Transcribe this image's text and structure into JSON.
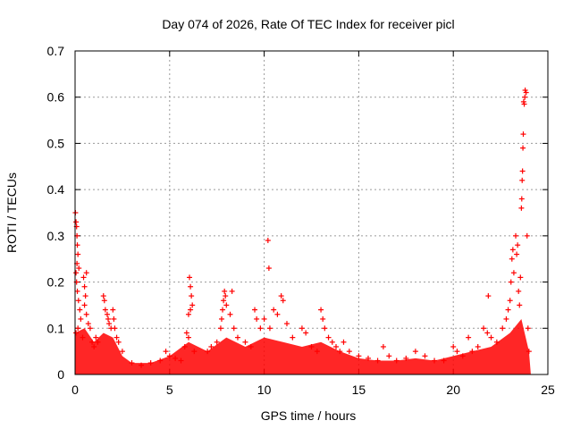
{
  "chart_data": {
    "type": "scatter",
    "title": "Day 074 of 2026, Rate Of TEC Index for receiver picl",
    "xlabel": "GPS time / hours",
    "ylabel": "ROTI / TECUs",
    "xlim": [
      0,
      25
    ],
    "ylim": [
      0,
      0.7
    ],
    "x_ticks": [
      0,
      5,
      10,
      15,
      20,
      25
    ],
    "x_tick_labels": [
      "0",
      "5",
      "10",
      "15",
      "20",
      "25"
    ],
    "y_ticks": [
      0,
      0.1,
      0.2,
      0.3,
      0.4,
      0.5,
      0.6,
      0.7
    ],
    "y_tick_labels": [
      "0",
      "0.1",
      "0.2",
      "0.3",
      "0.4",
      "0.5",
      "0.6",
      "0.7"
    ],
    "grid": true,
    "marker": "+",
    "series": [
      {
        "name": "ROTI",
        "color": "#ff0000",
        "points": [
          [
            0.02,
            0.35
          ],
          [
            0.05,
            0.33
          ],
          [
            0.08,
            0.32
          ],
          [
            0.1,
            0.3
          ],
          [
            0.12,
            0.28
          ],
          [
            0.15,
            0.26
          ],
          [
            0.1,
            0.24
          ],
          [
            0.05,
            0.22
          ],
          [
            0.2,
            0.23
          ],
          [
            0.08,
            0.2
          ],
          [
            0.12,
            0.18
          ],
          [
            0.18,
            0.16
          ],
          [
            0.25,
            0.14
          ],
          [
            0.3,
            0.12
          ],
          [
            0.15,
            0.1
          ],
          [
            0.05,
            0.09
          ],
          [
            0.45,
            0.21
          ],
          [
            0.5,
            0.19
          ],
          [
            0.55,
            0.17
          ],
          [
            0.6,
            0.22
          ],
          [
            0.5,
            0.15
          ],
          [
            0.6,
            0.13
          ],
          [
            0.7,
            0.11
          ],
          [
            0.8,
            0.1
          ],
          [
            0.4,
            0.08
          ],
          [
            0.9,
            0.07
          ],
          [
            1.0,
            0.06
          ],
          [
            1.1,
            0.08
          ],
          [
            1.2,
            0.07
          ],
          [
            1.5,
            0.17
          ],
          [
            1.55,
            0.16
          ],
          [
            1.6,
            0.14
          ],
          [
            1.7,
            0.13
          ],
          [
            1.75,
            0.12
          ],
          [
            1.8,
            0.11
          ],
          [
            1.9,
            0.1
          ],
          [
            2.0,
            0.14
          ],
          [
            2.05,
            0.12
          ],
          [
            2.1,
            0.1
          ],
          [
            2.2,
            0.08
          ],
          [
            2.3,
            0.07
          ],
          [
            2.5,
            0.05
          ],
          [
            3.0,
            0.025
          ],
          [
            3.5,
            0.02
          ],
          [
            4.0,
            0.025
          ],
          [
            4.5,
            0.03
          ],
          [
            4.8,
            0.05
          ],
          [
            5.0,
            0.04
          ],
          [
            5.3,
            0.035
          ],
          [
            5.6,
            0.03
          ],
          [
            5.8,
            0.06
          ],
          [
            5.9,
            0.09
          ],
          [
            6.0,
            0.08
          ],
          [
            6.05,
            0.21
          ],
          [
            6.1,
            0.19
          ],
          [
            6.15,
            0.17
          ],
          [
            6.2,
            0.15
          ],
          [
            6.1,
            0.14
          ],
          [
            6.0,
            0.13
          ],
          [
            6.3,
            0.05
          ],
          [
            7.0,
            0.05
          ],
          [
            7.2,
            0.06
          ],
          [
            7.5,
            0.07
          ],
          [
            7.7,
            0.1
          ],
          [
            7.75,
            0.12
          ],
          [
            7.8,
            0.14
          ],
          [
            7.85,
            0.16
          ],
          [
            7.9,
            0.18
          ],
          [
            7.95,
            0.17
          ],
          [
            8.0,
            0.15
          ],
          [
            8.2,
            0.13
          ],
          [
            8.3,
            0.18
          ],
          [
            8.4,
            0.1
          ],
          [
            8.6,
            0.08
          ],
          [
            9.0,
            0.07
          ],
          [
            9.3,
            0.06
          ],
          [
            9.5,
            0.14
          ],
          [
            9.6,
            0.12
          ],
          [
            9.8,
            0.1
          ],
          [
            10.0,
            0.12
          ],
          [
            10.2,
            0.29
          ],
          [
            10.25,
            0.23
          ],
          [
            10.3,
            0.1
          ],
          [
            10.5,
            0.14
          ],
          [
            10.7,
            0.13
          ],
          [
            10.9,
            0.17
          ],
          [
            11.0,
            0.16
          ],
          [
            11.2,
            0.11
          ],
          [
            11.5,
            0.08
          ],
          [
            12.0,
            0.1
          ],
          [
            12.2,
            0.09
          ],
          [
            12.5,
            0.06
          ],
          [
            12.8,
            0.05
          ],
          [
            13.0,
            0.14
          ],
          [
            13.1,
            0.12
          ],
          [
            13.2,
            0.1
          ],
          [
            13.4,
            0.08
          ],
          [
            13.6,
            0.07
          ],
          [
            13.8,
            0.06
          ],
          [
            14.0,
            0.05
          ],
          [
            14.2,
            0.07
          ],
          [
            14.5,
            0.05
          ],
          [
            15.0,
            0.04
          ],
          [
            15.5,
            0.035
          ],
          [
            16.0,
            0.03
          ],
          [
            16.3,
            0.06
          ],
          [
            16.6,
            0.04
          ],
          [
            17.0,
            0.03
          ],
          [
            17.5,
            0.035
          ],
          [
            18.0,
            0.05
          ],
          [
            18.5,
            0.04
          ],
          [
            19.0,
            0.03
          ],
          [
            19.5,
            0.03
          ],
          [
            20.0,
            0.06
          ],
          [
            20.2,
            0.05
          ],
          [
            20.5,
            0.04
          ],
          [
            20.8,
            0.08
          ],
          [
            21.0,
            0.05
          ],
          [
            21.3,
            0.06
          ],
          [
            21.6,
            0.1
          ],
          [
            21.8,
            0.09
          ],
          [
            21.85,
            0.17
          ],
          [
            22.0,
            0.08
          ],
          [
            22.3,
            0.07
          ],
          [
            22.6,
            0.1
          ],
          [
            22.8,
            0.12
          ],
          [
            22.9,
            0.14
          ],
          [
            23.0,
            0.16
          ],
          [
            23.05,
            0.2
          ],
          [
            23.1,
            0.25
          ],
          [
            23.15,
            0.27
          ],
          [
            23.2,
            0.22
          ],
          [
            23.3,
            0.3
          ],
          [
            23.35,
            0.26
          ],
          [
            23.4,
            0.28
          ],
          [
            23.45,
            0.18
          ],
          [
            23.5,
            0.15
          ],
          [
            23.55,
            0.21
          ],
          [
            23.6,
            0.36
          ],
          [
            23.62,
            0.38
          ],
          [
            23.64,
            0.42
          ],
          [
            23.66,
            0.44
          ],
          [
            23.68,
            0.49
          ],
          [
            23.7,
            0.52
          ],
          [
            23.72,
            0.59
          ],
          [
            23.75,
            0.585
          ],
          [
            23.78,
            0.6
          ],
          [
            23.8,
            0.615
          ],
          [
            23.85,
            0.61
          ],
          [
            23.9,
            0.3
          ],
          [
            23.95,
            0.1
          ],
          [
            24.0,
            0.05
          ]
        ]
      }
    ]
  }
}
